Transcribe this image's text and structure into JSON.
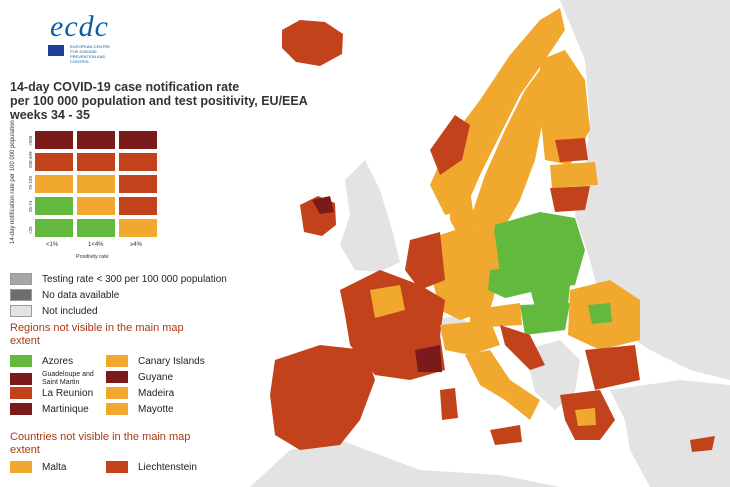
{
  "logo": {
    "text": "ecdc",
    "subtitle": "EUROPEAN CENTRE FOR DISEASE PREVENTION AND CONTROL"
  },
  "title_lines": [
    "14-day COVID-19 case notification rate",
    "per 100 000 population and test positivity, EU/EEA",
    "weeks 34 - 35"
  ],
  "matrix": {
    "ylabel": "14-day notification rate per 100 000 population",
    "xlabel": "Positivity rate",
    "x_ticks": [
      "<1%",
      "1<4%",
      "≥4%"
    ],
    "y_ticks": [
      "<25",
      "25-74",
      "75-199",
      "200-499",
      ">500"
    ],
    "rows": [
      [
        "#7a1a1a",
        "#7a1a1a",
        "#7a1a1a"
      ],
      [
        "#c2431b",
        "#c2431b",
        "#c2431b"
      ],
      [
        "#f0a92e",
        "#f0a92e",
        "#c2431b"
      ],
      [
        "#63b93e",
        "#f0a92e",
        "#c2431b"
      ],
      [
        "#63b93e",
        "#63b93e",
        "#f0a92e"
      ]
    ]
  },
  "legend_gray": [
    {
      "label": "Testing rate < 300 per 100 000 population",
      "color": "#a6a6a6"
    },
    {
      "label": "No data available",
      "color": "#6e6e6e"
    },
    {
      "label": "Not included",
      "color": "#e3e3e3"
    }
  ],
  "regions_title": "Regions not visible in the main map extent",
  "regions": [
    {
      "label": "Azores",
      "color": "#63b93e",
      "small": false
    },
    {
      "label": "Canary Islands",
      "color": "#f0a92e",
      "small": false
    },
    {
      "label": "Guadeloupe and Saint Martin",
      "color": "#7a1a1a",
      "small": true
    },
    {
      "label": "Guyane",
      "color": "#7a1a1a",
      "small": false
    },
    {
      "label": "La Reunion",
      "color": "#c2431b",
      "small": false
    },
    {
      "label": "Madeira",
      "color": "#f0a92e",
      "small": false
    },
    {
      "label": "Martinique",
      "color": "#7a1a1a",
      "small": false
    },
    {
      "label": "Mayotte",
      "color": "#f0a92e",
      "small": false
    }
  ],
  "countries_title": "Countries not visible in the main map extent",
  "countries": [
    {
      "label": "Malta",
      "color": "#f0a92e"
    },
    {
      "label": "Liechtenstein",
      "color": "#c2431b"
    }
  ],
  "colors": {
    "dark_red": "#7a1a1a",
    "red": "#c2431b",
    "orange": "#f0a92e",
    "green": "#63b93e",
    "not_included": "#e3e3e3",
    "sea": "#ffffff"
  }
}
